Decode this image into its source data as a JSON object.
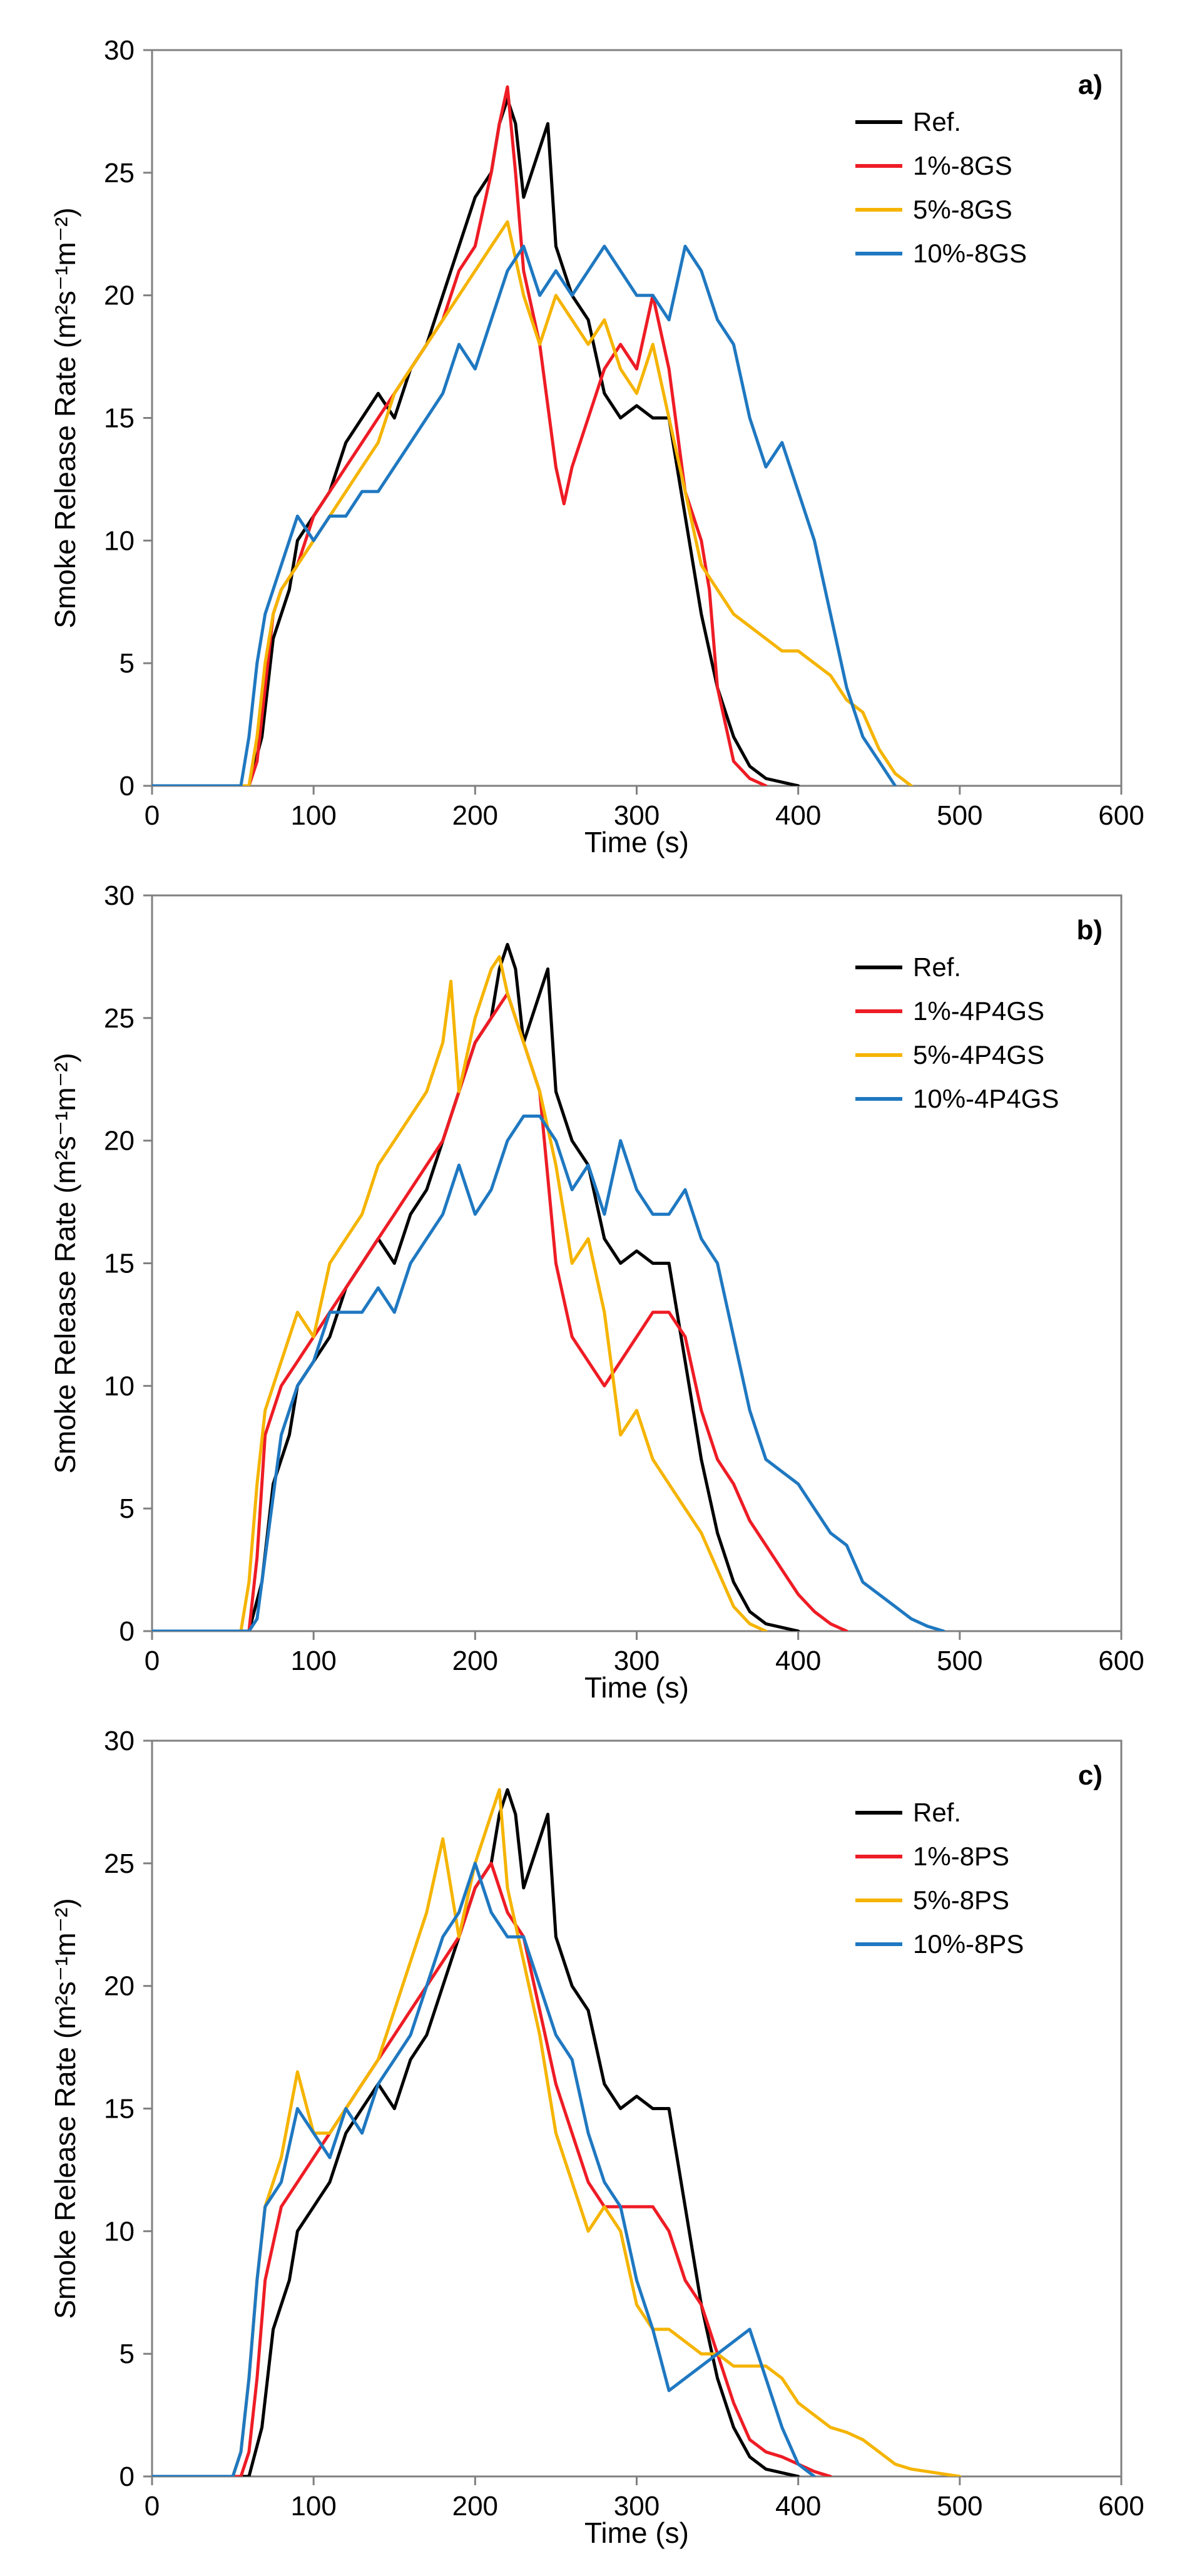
{
  "chart_data": [
    {
      "type": "line",
      "panel_label": "a)",
      "xlabel": "Time (s)",
      "ylabel": "Smoke Release Rate (m²s⁻¹m⁻²)",
      "xlim": [
        0,
        600
      ],
      "ylim": [
        0,
        30
      ],
      "xticks": [
        "0",
        "100",
        "200",
        "300",
        "400",
        "500",
        "600"
      ],
      "yticks": [
        "0",
        "5",
        "10",
        "15",
        "20",
        "25",
        "30"
      ],
      "legend_position": "top-right",
      "series": [
        {
          "name": "Ref.",
          "color": "#000000",
          "x": [
            0,
            60,
            68,
            75,
            80,
            85,
            90,
            100,
            110,
            120,
            130,
            140,
            150,
            160,
            170,
            180,
            190,
            200,
            210,
            215,
            220,
            225,
            230,
            240,
            245,
            250,
            260,
            270,
            280,
            290,
            300,
            310,
            320,
            330,
            340,
            350,
            360,
            370,
            380,
            400
          ],
          "y": [
            0,
            0,
            2,
            6,
            7,
            8,
            10,
            11,
            12,
            14,
            15,
            16,
            15,
            17,
            18,
            20,
            22,
            24,
            25,
            27,
            28,
            27,
            24,
            26,
            27,
            22,
            20,
            19,
            16,
            15,
            15.5,
            15,
            15,
            11,
            7,
            4,
            2,
            0.8,
            0.3,
            0
          ]
        },
        {
          "name": "1%-8GS",
          "color": "#ee1c25",
          "x": [
            0,
            60,
            65,
            70,
            75,
            80,
            90,
            100,
            110,
            120,
            130,
            140,
            150,
            160,
            170,
            180,
            190,
            200,
            210,
            215,
            220,
            225,
            230,
            240,
            250,
            255,
            260,
            270,
            280,
            290,
            300,
            310,
            320,
            330,
            340,
            345,
            350,
            360,
            370,
            380
          ],
          "y": [
            0,
            0,
            1,
            4,
            7,
            8,
            9,
            11,
            12,
            13,
            14,
            15,
            16,
            17,
            18,
            19,
            21,
            22,
            25,
            27,
            28.5,
            25,
            21,
            18,
            13,
            11.5,
            13,
            15,
            17,
            18,
            17,
            20,
            17,
            12,
            10,
            8,
            4,
            1,
            0.3,
            0
          ]
        },
        {
          "name": "5%-8GS",
          "color": "#f5b400",
          "x": [
            0,
            60,
            65,
            70,
            75,
            80,
            90,
            100,
            110,
            120,
            130,
            140,
            150,
            160,
            170,
            180,
            190,
            200,
            210,
            220,
            230,
            240,
            250,
            260,
            270,
            280,
            290,
            300,
            310,
            320,
            330,
            340,
            350,
            360,
            370,
            380,
            390,
            400,
            410,
            420,
            430,
            440,
            450,
            460,
            470
          ],
          "y": [
            0,
            0,
            2,
            5,
            7,
            8,
            9,
            10,
            11,
            12,
            13,
            14,
            16,
            17,
            18,
            19,
            20,
            21,
            22,
            23,
            20,
            18,
            20,
            19,
            18,
            19,
            17,
            16,
            18,
            15,
            12,
            9,
            8,
            7,
            6.5,
            6,
            5.5,
            5.5,
            5,
            4.5,
            3.5,
            3,
            1.5,
            0.5,
            0
          ]
        },
        {
          "name": "10%-8GS",
          "color": "#1f78c1",
          "x": [
            0,
            55,
            60,
            65,
            70,
            80,
            90,
            100,
            110,
            120,
            130,
            140,
            150,
            160,
            170,
            180,
            190,
            200,
            210,
            220,
            230,
            240,
            250,
            260,
            270,
            280,
            290,
            300,
            310,
            320,
            330,
            340,
            350,
            360,
            370,
            380,
            390,
            400,
            410,
            420,
            430,
            440,
            450,
            460
          ],
          "y": [
            0,
            0,
            2,
            5,
            7,
            9,
            11,
            10,
            11,
            11,
            12,
            12,
            13,
            14,
            15,
            16,
            18,
            17,
            19,
            21,
            22,
            20,
            21,
            20,
            21,
            22,
            21,
            20,
            20,
            19,
            22,
            21,
            19,
            18,
            15,
            13,
            14,
            12,
            10,
            7,
            4,
            2,
            1,
            0
          ]
        }
      ]
    },
    {
      "type": "line",
      "panel_label": "b)",
      "xlabel": "Time (s)",
      "ylabel": "Smoke Release Rate (m²s⁻¹m⁻²)",
      "xlim": [
        0,
        600
      ],
      "ylim": [
        0,
        30
      ],
      "xticks": [
        "0",
        "100",
        "200",
        "300",
        "400",
        "500",
        "600"
      ],
      "yticks": [
        "0",
        "5",
        "10",
        "15",
        "20",
        "25",
        "30"
      ],
      "legend_position": "top-right",
      "series": [
        {
          "name": "Ref.",
          "color": "#000000",
          "x": [
            0,
            60,
            68,
            75,
            80,
            85,
            90,
            100,
            110,
            120,
            130,
            140,
            150,
            160,
            170,
            180,
            190,
            200,
            210,
            215,
            220,
            225,
            230,
            240,
            245,
            250,
            260,
            270,
            280,
            290,
            300,
            310,
            320,
            330,
            340,
            350,
            360,
            370,
            380,
            400
          ],
          "y": [
            0,
            0,
            2,
            6,
            7,
            8,
            10,
            11,
            12,
            14,
            15,
            16,
            15,
            17,
            18,
            20,
            22,
            24,
            25,
            27,
            28,
            27,
            24,
            26,
            27,
            22,
            20,
            19,
            16,
            15,
            15.5,
            15,
            15,
            11,
            7,
            4,
            2,
            0.8,
            0.3,
            0
          ]
        },
        {
          "name": "1%-4P4GS",
          "color": "#ee1c25",
          "x": [
            0,
            60,
            65,
            70,
            80,
            90,
            100,
            110,
            120,
            130,
            140,
            150,
            160,
            170,
            180,
            190,
            200,
            210,
            220,
            230,
            240,
            250,
            260,
            270,
            280,
            290,
            300,
            310,
            320,
            330,
            340,
            350,
            360,
            370,
            380,
            390,
            400,
            410,
            420,
            430
          ],
          "y": [
            0,
            0,
            3,
            8,
            10,
            11,
            12,
            13,
            14,
            15,
            16,
            17,
            18,
            19,
            20,
            22,
            24,
            25,
            26,
            24,
            22,
            15,
            12,
            11,
            10,
            11,
            12,
            13,
            13,
            12,
            9,
            7,
            6,
            4.5,
            3.5,
            2.5,
            1.5,
            0.8,
            0.3,
            0
          ]
        },
        {
          "name": "5%-4P4GS",
          "color": "#f5b400",
          "x": [
            0,
            55,
            60,
            65,
            70,
            80,
            90,
            100,
            110,
            120,
            130,
            140,
            150,
            160,
            170,
            180,
            185,
            190,
            200,
            210,
            215,
            220,
            230,
            240,
            250,
            260,
            270,
            280,
            290,
            300,
            310,
            320,
            330,
            340,
            350,
            360,
            370,
            380
          ],
          "y": [
            0,
            0,
            2,
            6,
            9,
            11,
            13,
            12,
            15,
            16,
            17,
            19,
            20,
            21,
            22,
            24,
            26.5,
            22,
            25,
            27,
            27.5,
            26,
            24,
            22,
            19,
            15,
            16,
            13,
            8,
            9,
            7,
            6,
            5,
            4,
            2.5,
            1,
            0.3,
            0
          ]
        },
        {
          "name": "10%-4P4GS",
          "color": "#1f78c1",
          "x": [
            0,
            60,
            65,
            70,
            80,
            90,
            100,
            110,
            120,
            130,
            140,
            150,
            160,
            170,
            180,
            190,
            200,
            210,
            220,
            230,
            240,
            250,
            260,
            270,
            280,
            290,
            300,
            310,
            320,
            330,
            340,
            350,
            360,
            370,
            380,
            390,
            400,
            410,
            420,
            430,
            440,
            450,
            460,
            470,
            480,
            490
          ],
          "y": [
            0,
            0,
            0.5,
            3,
            8,
            10,
            11,
            13,
            13,
            13,
            14,
            13,
            15,
            16,
            17,
            19,
            17,
            18,
            20,
            21,
            21,
            20,
            18,
            19,
            17,
            20,
            18,
            17,
            17,
            18,
            16,
            15,
            12,
            9,
            7,
            6.5,
            6,
            5,
            4,
            3.5,
            2,
            1.5,
            1,
            0.5,
            0.2,
            0
          ]
        }
      ]
    },
    {
      "type": "line",
      "panel_label": "c)",
      "xlabel": "Time (s)",
      "ylabel": "Smoke Release Rate (m²s⁻¹m⁻²)",
      "xlim": [
        0,
        600
      ],
      "ylim": [
        0,
        30
      ],
      "xticks": [
        "0",
        "100",
        "200",
        "300",
        "400",
        "500",
        "600"
      ],
      "yticks": [
        "0",
        "5",
        "10",
        "15",
        "20",
        "25",
        "30"
      ],
      "legend_position": "top-right",
      "series": [
        {
          "name": "Ref.",
          "color": "#000000",
          "x": [
            0,
            60,
            68,
            75,
            80,
            85,
            90,
            100,
            110,
            120,
            130,
            140,
            150,
            160,
            170,
            180,
            190,
            200,
            210,
            215,
            220,
            225,
            230,
            240,
            245,
            250,
            260,
            270,
            280,
            290,
            300,
            310,
            320,
            330,
            340,
            350,
            360,
            370,
            380,
            400
          ],
          "y": [
            0,
            0,
            2,
            6,
            7,
            8,
            10,
            11,
            12,
            14,
            15,
            16,
            15,
            17,
            18,
            20,
            22,
            24,
            25,
            27,
            28,
            27,
            24,
            26,
            27,
            22,
            20,
            19,
            16,
            15,
            15.5,
            15,
            15,
            11,
            7,
            4,
            2,
            0.8,
            0.3,
            0
          ]
        },
        {
          "name": "1%-8PS",
          "color": "#ee1c25",
          "x": [
            0,
            55,
            60,
            65,
            70,
            80,
            90,
            100,
            110,
            120,
            130,
            140,
            150,
            160,
            170,
            180,
            190,
            200,
            210,
            220,
            230,
            240,
            250,
            260,
            270,
            280,
            290,
            300,
            310,
            320,
            330,
            340,
            350,
            360,
            370,
            380,
            390,
            400,
            410,
            420
          ],
          "y": [
            0,
            0,
            1,
            4,
            8,
            11,
            12,
            13,
            14,
            15,
            16,
            17,
            18,
            19,
            20,
            21,
            22,
            24,
            25,
            23,
            22,
            19,
            16,
            14,
            12,
            11,
            11,
            11,
            11,
            10,
            8,
            7,
            5,
            3,
            1.5,
            1,
            0.8,
            0.5,
            0.2,
            0
          ]
        },
        {
          "name": "5%-8PS",
          "color": "#f5b400",
          "x": [
            0,
            50,
            55,
            60,
            65,
            70,
            80,
            90,
            100,
            110,
            120,
            130,
            140,
            150,
            160,
            170,
            180,
            190,
            200,
            210,
            215,
            220,
            230,
            240,
            250,
            260,
            270,
            280,
            290,
            300,
            310,
            320,
            330,
            340,
            350,
            360,
            370,
            380,
            390,
            400,
            410,
            420,
            430,
            440,
            450,
            460,
            470,
            480,
            490,
            500
          ],
          "y": [
            0,
            0,
            1,
            4,
            8,
            11,
            13,
            16.5,
            14,
            14,
            15,
            16,
            17,
            19,
            21,
            23,
            26,
            22,
            25,
            27,
            28,
            24,
            21,
            18,
            14,
            12,
            10,
            11,
            10,
            7,
            6,
            6,
            5.5,
            5,
            5,
            4.5,
            4.5,
            4.5,
            4,
            3,
            2.5,
            2,
            1.8,
            1.5,
            1,
            0.5,
            0.3,
            0.2,
            0.1,
            0
          ]
        },
        {
          "name": "10%-8PS",
          "color": "#1f78c1",
          "x": [
            0,
            50,
            55,
            60,
            65,
            70,
            80,
            90,
            100,
            110,
            120,
            130,
            140,
            150,
            160,
            170,
            180,
            190,
            200,
            210,
            220,
            230,
            240,
            250,
            260,
            270,
            280,
            290,
            300,
            310,
            320,
            330,
            340,
            350,
            360,
            370,
            380,
            390,
            400,
            410
          ],
          "y": [
            0,
            0,
            1,
            4,
            8,
            11,
            12,
            15,
            14,
            13,
            15,
            14,
            16,
            17,
            18,
            20,
            22,
            23,
            25,
            23,
            22,
            22,
            20,
            18,
            17,
            14,
            12,
            11,
            8,
            6,
            3.5,
            4,
            4.5,
            5,
            5.5,
            6,
            4,
            2,
            0.5,
            0
          ]
        }
      ]
    }
  ]
}
